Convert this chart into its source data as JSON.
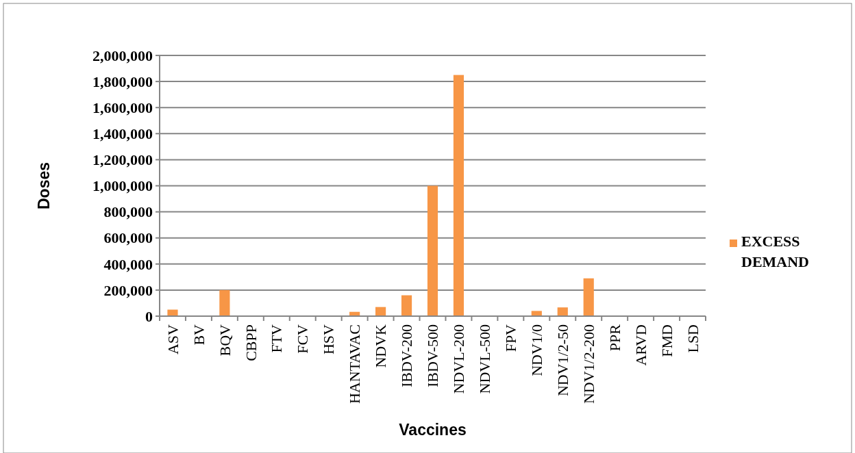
{
  "chart_data": {
    "type": "bar",
    "xlabel": "Vaccines",
    "ylabel": "Doses",
    "categories": [
      "ASV",
      "BV",
      "BQV",
      "CBPP",
      "FTV",
      "FCV",
      "HSV",
      "HANTAVAC",
      "NDVK",
      "IBDV-200",
      "IBDV-500",
      "NDVL-200",
      "NDVL-500",
      "FPV",
      "NDV1/0",
      "NDV1/2-50",
      "NDV1/2-200",
      "PPR",
      "ARVD",
      "FMD",
      "LSD"
    ],
    "series": [
      {
        "name": "EXCESS DEMAND",
        "color": "#f79646",
        "values": [
          50000,
          0,
          200000,
          0,
          0,
          0,
          0,
          33000,
          70000,
          160000,
          1000000,
          1850000,
          0,
          0,
          40000,
          67000,
          290000,
          0,
          0,
          0,
          0
        ]
      }
    ],
    "ylim": [
      0,
      2000000
    ],
    "yticks": [
      {
        "value": 0,
        "label": "0"
      },
      {
        "value": 200000,
        "label": "200,000"
      },
      {
        "value": 400000,
        "label": "400,000"
      },
      {
        "value": 600000,
        "label": "600,000"
      },
      {
        "value": 800000,
        "label": "800,000"
      },
      {
        "value": 1000000,
        "label": "1,000,000"
      },
      {
        "value": 1200000,
        "label": "1,200,000"
      },
      {
        "value": 1400000,
        "label": "1,400,000"
      },
      {
        "value": 1600000,
        "label": "1,600,000"
      },
      {
        "value": 1800000,
        "label": "1,800,000"
      },
      {
        "value": 2000000,
        "label": "2,000,000"
      }
    ],
    "grid": "y",
    "legend": "right"
  }
}
